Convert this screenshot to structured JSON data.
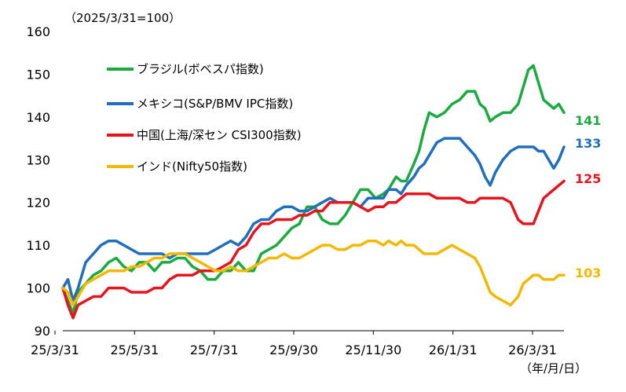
{
  "chart_data": {
    "type": "line",
    "note": "（2025/3/31=100）",
    "x_unit": "（年/月/日）",
    "ylim": [
      90,
      160
    ],
    "yticks": [
      90,
      100,
      110,
      120,
      130,
      140,
      150,
      160
    ],
    "x_tick_labels": [
      "25/3/31",
      "25/5/31",
      "25/7/31",
      "25/9/30",
      "25/11/30",
      "26/1/31",
      "26/3/31"
    ],
    "grid": false,
    "legend_position": "top-left",
    "series": [
      {
        "name": "ブラジル(ボベスパ指数)",
        "color": "#1aab40",
        "end_label": "141",
        "points": [
          [
            0,
            100
          ],
          [
            2,
            97
          ],
          [
            4,
            94
          ],
          [
            6,
            99
          ],
          [
            9,
            101
          ],
          [
            12,
            103
          ],
          [
            15,
            104
          ],
          [
            18,
            106
          ],
          [
            21,
            107
          ],
          [
            24,
            105
          ],
          [
            27,
            104
          ],
          [
            30,
            106
          ],
          [
            33,
            106
          ],
          [
            36,
            104
          ],
          [
            39,
            106
          ],
          [
            42,
            106
          ],
          [
            45,
            107
          ],
          [
            48,
            107
          ],
          [
            51,
            105
          ],
          [
            54,
            104
          ],
          [
            57,
            102
          ],
          [
            60,
            102
          ],
          [
            63,
            104
          ],
          [
            66,
            104
          ],
          [
            69,
            106
          ],
          [
            72,
            104
          ],
          [
            75,
            104
          ],
          [
            78,
            108
          ],
          [
            81,
            109
          ],
          [
            84,
            110
          ],
          [
            87,
            112
          ],
          [
            90,
            114
          ],
          [
            93,
            115
          ],
          [
            96,
            119
          ],
          [
            99,
            119
          ],
          [
            102,
            116
          ],
          [
            105,
            115
          ],
          [
            108,
            115
          ],
          [
            111,
            117
          ],
          [
            114,
            120
          ],
          [
            117,
            123
          ],
          [
            120,
            123
          ],
          [
            123,
            121
          ],
          [
            126,
            122
          ],
          [
            128,
            123
          ],
          [
            131,
            126
          ],
          [
            133,
            125
          ],
          [
            135,
            125
          ],
          [
            138,
            129
          ],
          [
            140,
            132
          ],
          [
            142,
            137
          ],
          [
            144,
            141
          ],
          [
            147,
            140
          ],
          [
            150,
            141
          ],
          [
            153,
            143
          ],
          [
            156,
            144
          ],
          [
            159,
            146
          ],
          [
            162,
            146
          ],
          [
            164,
            143
          ],
          [
            166,
            142
          ],
          [
            168,
            139
          ],
          [
            170,
            140
          ],
          [
            173,
            141
          ],
          [
            176,
            141
          ],
          [
            179,
            143
          ],
          [
            181,
            147
          ],
          [
            183,
            151
          ],
          [
            185,
            152
          ],
          [
            187,
            148
          ],
          [
            189,
            144
          ],
          [
            191,
            143
          ],
          [
            193,
            142
          ],
          [
            195,
            143
          ],
          [
            197,
            141
          ]
        ]
      },
      {
        "name": "メキシコ(S&P/BMV IPC指数)",
        "color": "#1f6fbd",
        "end_label": "133",
        "points": [
          [
            0,
            100
          ],
          [
            2,
            102
          ],
          [
            4,
            97
          ],
          [
            6,
            100
          ],
          [
            9,
            106
          ],
          [
            12,
            108
          ],
          [
            15,
            110
          ],
          [
            18,
            111
          ],
          [
            21,
            111
          ],
          [
            24,
            110
          ],
          [
            27,
            109
          ],
          [
            30,
            108
          ],
          [
            33,
            108
          ],
          [
            36,
            108
          ],
          [
            39,
            108
          ],
          [
            42,
            107
          ],
          [
            45,
            108
          ],
          [
            48,
            108
          ],
          [
            51,
            108
          ],
          [
            54,
            108
          ],
          [
            57,
            108
          ],
          [
            60,
            109
          ],
          [
            63,
            110
          ],
          [
            66,
            111
          ],
          [
            69,
            110
          ],
          [
            72,
            112
          ],
          [
            75,
            115
          ],
          [
            78,
            116
          ],
          [
            81,
            116
          ],
          [
            84,
            118
          ],
          [
            87,
            119
          ],
          [
            90,
            119
          ],
          [
            93,
            118
          ],
          [
            96,
            118
          ],
          [
            99,
            119
          ],
          [
            102,
            120
          ],
          [
            105,
            121
          ],
          [
            108,
            120
          ],
          [
            111,
            120
          ],
          [
            114,
            120
          ],
          [
            117,
            119
          ],
          [
            120,
            121
          ],
          [
            123,
            121
          ],
          [
            126,
            121
          ],
          [
            128,
            123
          ],
          [
            131,
            123
          ],
          [
            133,
            122
          ],
          [
            135,
            124
          ],
          [
            138,
            126
          ],
          [
            140,
            128
          ],
          [
            142,
            129
          ],
          [
            144,
            131
          ],
          [
            147,
            134
          ],
          [
            150,
            135
          ],
          [
            153,
            135
          ],
          [
            156,
            135
          ],
          [
            159,
            133
          ],
          [
            162,
            131
          ],
          [
            164,
            129
          ],
          [
            166,
            126
          ],
          [
            168,
            124
          ],
          [
            170,
            127
          ],
          [
            173,
            130
          ],
          [
            176,
            132
          ],
          [
            179,
            133
          ],
          [
            181,
            133
          ],
          [
            183,
            133
          ],
          [
            185,
            133
          ],
          [
            187,
            132
          ],
          [
            189,
            132
          ],
          [
            191,
            130
          ],
          [
            193,
            128
          ],
          [
            195,
            130
          ],
          [
            197,
            133
          ]
        ]
      },
      {
        "name": "中国(上海/深セン CSI300指数)",
        "color": "#e8141d",
        "end_label": "125",
        "points": [
          [
            0,
            100
          ],
          [
            2,
            96
          ],
          [
            4,
            93
          ],
          [
            6,
            96
          ],
          [
            9,
            97
          ],
          [
            12,
            98
          ],
          [
            15,
            98
          ],
          [
            18,
            100
          ],
          [
            21,
            100
          ],
          [
            24,
            100
          ],
          [
            27,
            99
          ],
          [
            30,
            99
          ],
          [
            33,
            99
          ],
          [
            36,
            100
          ],
          [
            39,
            100
          ],
          [
            42,
            102
          ],
          [
            45,
            103
          ],
          [
            48,
            103
          ],
          [
            51,
            103
          ],
          [
            54,
            104
          ],
          [
            57,
            104
          ],
          [
            60,
            104
          ],
          [
            63,
            105
          ],
          [
            66,
            106
          ],
          [
            69,
            109
          ],
          [
            72,
            110
          ],
          [
            75,
            113
          ],
          [
            78,
            115
          ],
          [
            81,
            115
          ],
          [
            84,
            116
          ],
          [
            87,
            116
          ],
          [
            90,
            116
          ],
          [
            93,
            117
          ],
          [
            96,
            117
          ],
          [
            99,
            118
          ],
          [
            102,
            118
          ],
          [
            105,
            120
          ],
          [
            108,
            120
          ],
          [
            111,
            120
          ],
          [
            114,
            120
          ],
          [
            117,
            119
          ],
          [
            120,
            118
          ],
          [
            123,
            119
          ],
          [
            126,
            119
          ],
          [
            128,
            120
          ],
          [
            131,
            120
          ],
          [
            133,
            121
          ],
          [
            135,
            122
          ],
          [
            138,
            122
          ],
          [
            140,
            122
          ],
          [
            142,
            122
          ],
          [
            144,
            122
          ],
          [
            147,
            121
          ],
          [
            150,
            121
          ],
          [
            153,
            121
          ],
          [
            156,
            121
          ],
          [
            159,
            120
          ],
          [
            162,
            120
          ],
          [
            164,
            121
          ],
          [
            166,
            121
          ],
          [
            168,
            121
          ],
          [
            170,
            121
          ],
          [
            173,
            121
          ],
          [
            176,
            120
          ],
          [
            179,
            116
          ],
          [
            181,
            115
          ],
          [
            183,
            115
          ],
          [
            185,
            115
          ],
          [
            187,
            118
          ],
          [
            189,
            121
          ],
          [
            191,
            122
          ],
          [
            193,
            123
          ],
          [
            195,
            124
          ],
          [
            197,
            125
          ]
        ]
      },
      {
        "name": "インド(Nifty50指数)",
        "color": "#f5b800",
        "end_label": "103",
        "points": [
          [
            0,
            100
          ],
          [
            2,
            99
          ],
          [
            4,
            96
          ],
          [
            6,
            98
          ],
          [
            9,
            101
          ],
          [
            12,
            102
          ],
          [
            15,
            103
          ],
          [
            18,
            104
          ],
          [
            21,
            104
          ],
          [
            24,
            104
          ],
          [
            27,
            105
          ],
          [
            30,
            105
          ],
          [
            33,
            106
          ],
          [
            36,
            107
          ],
          [
            39,
            107
          ],
          [
            42,
            108
          ],
          [
            45,
            108
          ],
          [
            48,
            108
          ],
          [
            51,
            107
          ],
          [
            54,
            106
          ],
          [
            57,
            105
          ],
          [
            60,
            104
          ],
          [
            63,
            104
          ],
          [
            66,
            105
          ],
          [
            69,
            104
          ],
          [
            72,
            104
          ],
          [
            75,
            105
          ],
          [
            78,
            106
          ],
          [
            81,
            107
          ],
          [
            84,
            107
          ],
          [
            87,
            108
          ],
          [
            90,
            107
          ],
          [
            93,
            107
          ],
          [
            96,
            108
          ],
          [
            99,
            109
          ],
          [
            102,
            110
          ],
          [
            105,
            110
          ],
          [
            108,
            109
          ],
          [
            111,
            109
          ],
          [
            114,
            110
          ],
          [
            117,
            110
          ],
          [
            120,
            111
          ],
          [
            123,
            111
          ],
          [
            126,
            110
          ],
          [
            128,
            111
          ],
          [
            131,
            110
          ],
          [
            133,
            111
          ],
          [
            135,
            110
          ],
          [
            138,
            110
          ],
          [
            140,
            109
          ],
          [
            142,
            108
          ],
          [
            144,
            108
          ],
          [
            147,
            108
          ],
          [
            150,
            109
          ],
          [
            153,
            110
          ],
          [
            156,
            109
          ],
          [
            159,
            108
          ],
          [
            162,
            107
          ],
          [
            164,
            105
          ],
          [
            166,
            102
          ],
          [
            168,
            99
          ],
          [
            170,
            98
          ],
          [
            173,
            97
          ],
          [
            176,
            96
          ],
          [
            179,
            98
          ],
          [
            181,
            101
          ],
          [
            183,
            102
          ],
          [
            185,
            103
          ],
          [
            187,
            103
          ],
          [
            189,
            102
          ],
          [
            191,
            102
          ],
          [
            193,
            102
          ],
          [
            195,
            103
          ],
          [
            197,
            103
          ]
        ]
      }
    ]
  }
}
